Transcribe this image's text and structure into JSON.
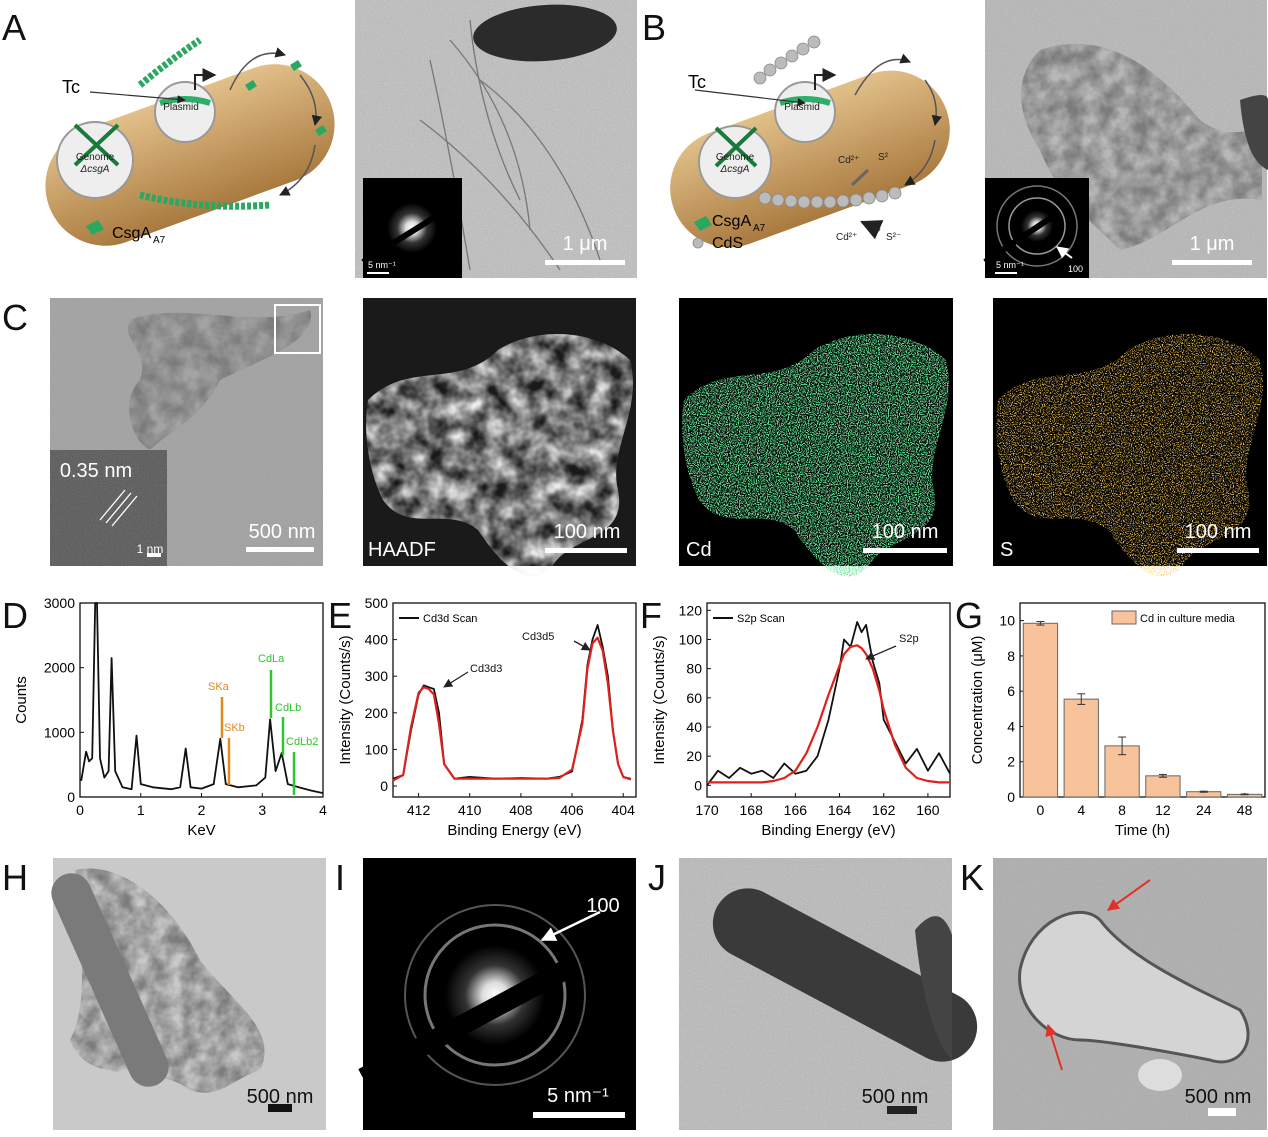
{
  "figure": {
    "panel_labels": [
      "A",
      "B",
      "C",
      "D",
      "E",
      "F",
      "G",
      "H",
      "I",
      "J",
      "K"
    ],
    "A": {
      "tc": "Tc",
      "plasmid": "Plasmid",
      "genome": "Genome",
      "genome_strain": "ΔcsgA",
      "protein": "CsgA",
      "protein_sub": "A7",
      "scale": "1 μm",
      "inset_scale": "5 nm⁻¹"
    },
    "B": {
      "tc": "Tc",
      "plasmid": "Plasmid",
      "genome": "Genome",
      "genome_strain": "ΔcsgA",
      "ion_cd_1": "Cd²⁺",
      "ion_s_1": "S²",
      "protein": "CsgA",
      "protein_sub": "A7",
      "particle": "CdS",
      "ion_cd_2": "Cd²⁺",
      "ion_s_2": "S²⁻",
      "scale": "1 μm",
      "inset_scale": "5 nm⁻¹",
      "inset_ring": "100"
    },
    "C": {
      "lattice": "0.35 nm",
      "inset_scale": "1 nm",
      "scale": "500 nm",
      "haadf": "HAADF",
      "haadf_scale": "100 nm",
      "cd": "Cd",
      "cd_scale": "100 nm",
      "s": "S",
      "s_scale": "100 nm"
    },
    "H": {
      "scale": "500 nm"
    },
    "I": {
      "ring": "100",
      "scale": "5 nm⁻¹"
    },
    "J": {
      "scale": "500 nm"
    },
    "K": {
      "scale": "500 nm"
    }
  },
  "chart_data": [
    {
      "type": "line",
      "xlabel": "KeV",
      "ylabel": "Counts",
      "xlim": [
        0,
        4
      ],
      "xticks": [
        0,
        1,
        2,
        3,
        4
      ],
      "ylim": [
        0,
        3000
      ],
      "yticks": [
        0,
        1000,
        2000,
        3000
      ],
      "x": [
        0.02,
        0.1,
        0.15,
        0.2,
        0.25,
        0.28,
        0.33,
        0.4,
        0.47,
        0.52,
        0.58,
        0.7,
        0.85,
        0.93,
        1.0,
        1.2,
        1.5,
        1.65,
        1.74,
        1.82,
        2.0,
        2.2,
        2.31,
        2.4,
        2.6,
        2.9,
        3.05,
        3.13,
        3.22,
        3.32,
        3.42,
        3.6,
        3.8,
        4.0
      ],
      "series": [
        {
          "color": "#111111",
          "values": [
            250,
            700,
            550,
            600,
            3000,
            3000,
            600,
            300,
            400,
            2150,
            400,
            150,
            120,
            950,
            200,
            150,
            120,
            150,
            750,
            150,
            130,
            200,
            900,
            200,
            150,
            180,
            300,
            1200,
            400,
            680,
            200,
            150,
            100,
            60
          ]
        }
      ],
      "annotations": [
        {
          "text": "SKa",
          "color": "#e0891c"
        },
        {
          "text": "SKb",
          "color": "#e0891c"
        },
        {
          "text": "CdLa",
          "color": "#2fc52f"
        },
        {
          "text": "CdLb",
          "color": "#2fc52f"
        },
        {
          "text": "CdLb2",
          "color": "#2fc52f"
        }
      ]
    },
    {
      "type": "line",
      "xlabel": "Binding Energy (eV)",
      "ylabel": "Intensity (Counts/s)",
      "xlim": [
        413,
        403.5
      ],
      "xticks": [
        412,
        410,
        408,
        406,
        404
      ],
      "ylim": [
        -30,
        500
      ],
      "yticks": [
        0,
        100,
        200,
        300,
        400,
        500
      ],
      "x": [
        413,
        412.6,
        412.3,
        412,
        411.8,
        411.6,
        411.4,
        411.2,
        411,
        410.6,
        410,
        409,
        408,
        407,
        406.5,
        406,
        405.6,
        405.4,
        405.2,
        405,
        404.8,
        404.6,
        404.4,
        404.2,
        404,
        403.7
      ],
      "series": [
        {
          "name": "Cd3d Scan",
          "color": "#111111",
          "values": [
            20,
            30,
            150,
            250,
            275,
            270,
            265,
            200,
            60,
            20,
            25,
            20,
            22,
            20,
            25,
            40,
            180,
            330,
            400,
            440,
            380,
            300,
            150,
            60,
            25,
            20
          ]
        },
        {
          "color": "#e0201b",
          "values": [
            15,
            30,
            160,
            255,
            270,
            265,
            250,
            170,
            60,
            20,
            20,
            20,
            20,
            20,
            22,
            45,
            170,
            320,
            390,
            405,
            370,
            280,
            150,
            60,
            25,
            18
          ]
        }
      ],
      "annotations": [
        {
          "text": "Cd3d3"
        },
        {
          "text": "Cd3d5"
        }
      ]
    },
    {
      "type": "line",
      "xlabel": "Binding Energy (eV)",
      "ylabel": "Intensity (Counts/s)",
      "xlim": [
        170,
        159
      ],
      "xticks": [
        170,
        168,
        166,
        164,
        162,
        160
      ],
      "ylim": [
        -8,
        125
      ],
      "yticks": [
        0,
        20,
        40,
        60,
        80,
        100,
        120
      ],
      "x": [
        170,
        169.5,
        169,
        168.5,
        168,
        167.5,
        167,
        166.5,
        166,
        165.5,
        165,
        164.5,
        164,
        163.8,
        163.5,
        163.2,
        163,
        162.8,
        162.5,
        162.2,
        162,
        161.5,
        161,
        160.5,
        160,
        159.5,
        159
      ],
      "series": [
        {
          "name": "S2p Scan",
          "color": "#111111",
          "values": [
            0,
            10,
            5,
            12,
            8,
            10,
            5,
            15,
            8,
            10,
            20,
            45,
            80,
            100,
            95,
            112,
            105,
            110,
            85,
            70,
            45,
            30,
            15,
            25,
            10,
            22,
            8
          ]
        },
        {
          "color": "#e0201b",
          "values": [
            2,
            2,
            2,
            2,
            2,
            2,
            3,
            5,
            10,
            22,
            40,
            62,
            82,
            90,
            95,
            96,
            94,
            90,
            80,
            65,
            52,
            28,
            12,
            5,
            3,
            2,
            2
          ]
        }
      ],
      "annotations": [
        {
          "text": "S2p"
        }
      ]
    },
    {
      "type": "bar",
      "xlabel": "Time (h)",
      "ylabel": "Concentration (μM)",
      "categories": [
        "0",
        "4",
        "8",
        "12",
        "24",
        "48"
      ],
      "ylim": [
        0,
        11
      ],
      "yticks": [
        0,
        2,
        4,
        6,
        8,
        10
      ],
      "legend": "upper right",
      "series": [
        {
          "name": "Cd in culture media",
          "color": "#f8c29a",
          "values": [
            9.85,
            5.55,
            2.9,
            1.2,
            0.3,
            0.15
          ],
          "errors": [
            0.1,
            0.3,
            0.5,
            0.08,
            0.03,
            0.02
          ]
        }
      ]
    }
  ]
}
